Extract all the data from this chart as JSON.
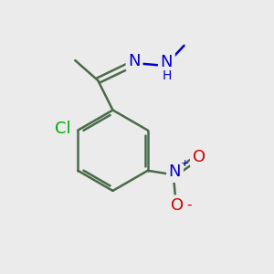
{
  "bg_color": "#ebebeb",
  "bond_color": "#4a6a4a",
  "bond_width": 1.8,
  "atom_colors": {
    "N": "#0000cc",
    "Cl": "#00aa00",
    "O": "#cc0000",
    "C": "#4a6a4a",
    "H": "#0000cc"
  },
  "font_size_atom": 13,
  "font_size_small": 10
}
